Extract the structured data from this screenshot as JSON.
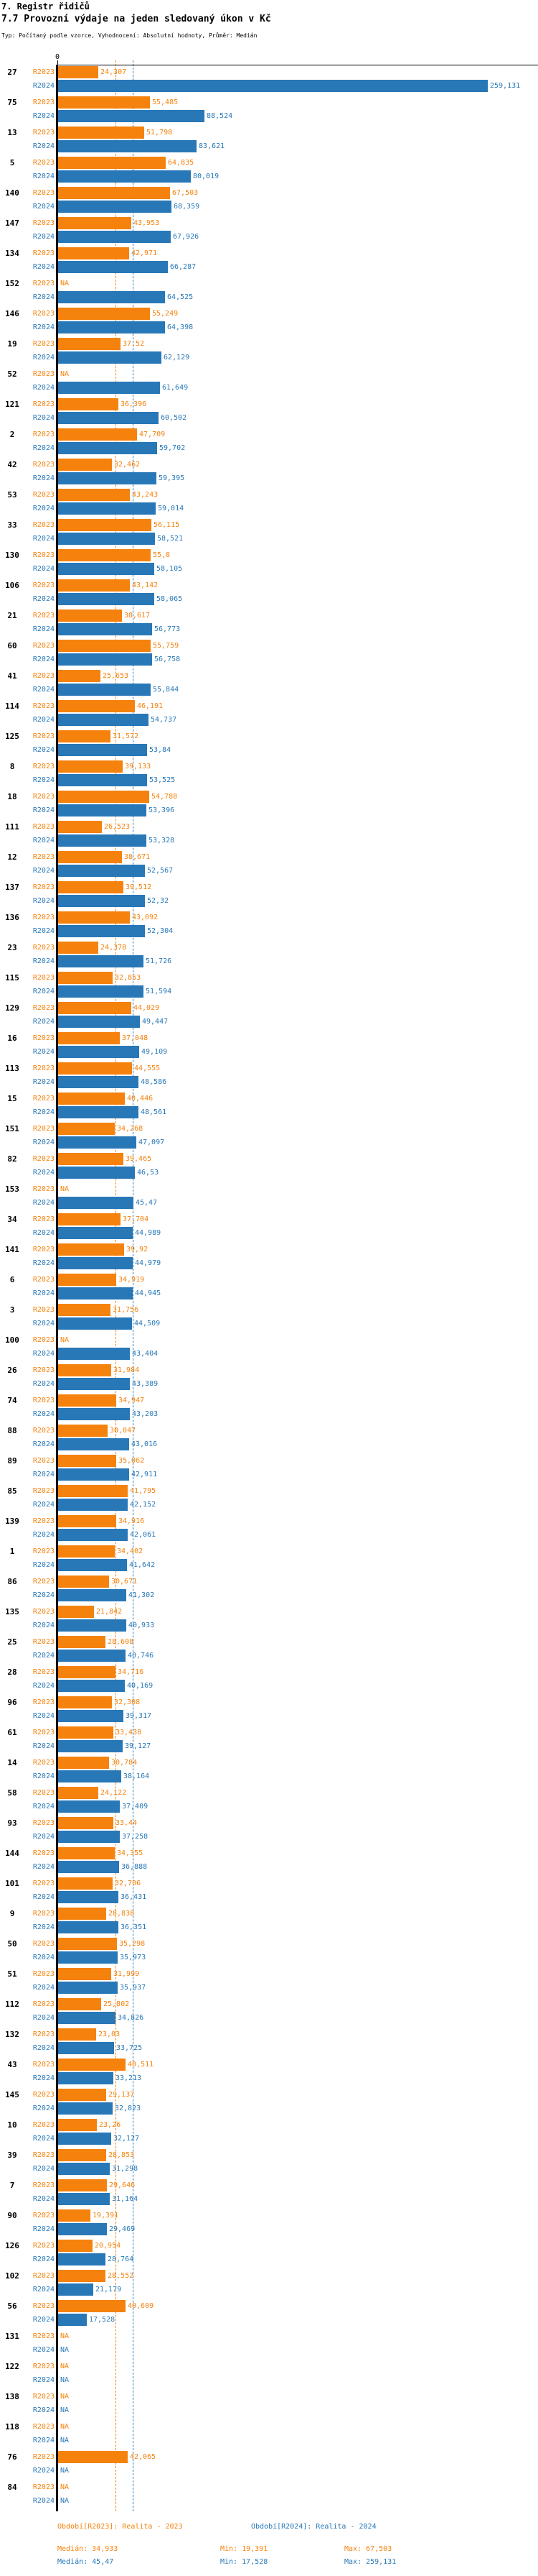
{
  "header": {
    "title": "7. Registr řidičů",
    "subtitle": "7.7 Provozní výdaje na jeden sledovaný úkon v Kč",
    "meta": "Typ: Počítaný podle vzorce, Vyhodnocení: Absolutní hodnoty, Průměr: Medián"
  },
  "chart_data": {
    "type": "bar",
    "orientation": "horizontal",
    "unit": "Kč",
    "axis_zero_label": "0",
    "na_label": "NA",
    "series_labels": [
      "R2023",
      "R2024"
    ],
    "colors": {
      "r2023": "#f5820d",
      "r2024": "#2878b8"
    },
    "median_2023": 34.933,
    "median_2024": 45.47,
    "rows": [
      {
        "id": "27",
        "v2023": "24,307",
        "v2024": "259,131"
      },
      {
        "id": "75",
        "v2023": "55,485",
        "v2024": "88,524"
      },
      {
        "id": "13",
        "v2023": "51,798",
        "v2024": "83,621"
      },
      {
        "id": "5",
        "v2023": "64,835",
        "v2024": "80,019"
      },
      {
        "id": "140",
        "v2023": "67,503",
        "v2024": "68,359"
      },
      {
        "id": "147",
        "v2023": "43,953",
        "v2024": "67,926"
      },
      {
        "id": "134",
        "v2023": "42,971",
        "v2024": "66,287"
      },
      {
        "id": "152",
        "v2023": "NA",
        "v2024": "64,525"
      },
      {
        "id": "146",
        "v2023": "55,249",
        "v2024": "64,398"
      },
      {
        "id": "19",
        "v2023": "37,52",
        "v2024": "62,129"
      },
      {
        "id": "52",
        "v2023": "NA",
        "v2024": "61,649"
      },
      {
        "id": "121",
        "v2023": "36,396",
        "v2024": "60,502"
      },
      {
        "id": "2",
        "v2023": "47,709",
        "v2024": "59,702"
      },
      {
        "id": "42",
        "v2023": "32,462",
        "v2024": "59,395"
      },
      {
        "id": "53",
        "v2023": "43,243",
        "v2024": "59,014"
      },
      {
        "id": "33",
        "v2023": "56,115",
        "v2024": "58,521"
      },
      {
        "id": "130",
        "v2023": "55,8",
        "v2024": "58,105"
      },
      {
        "id": "106",
        "v2023": "43,142",
        "v2024": "58,065"
      },
      {
        "id": "21",
        "v2023": "38,617",
        "v2024": "56,773"
      },
      {
        "id": "60",
        "v2023": "55,759",
        "v2024": "56,758"
      },
      {
        "id": "41",
        "v2023": "25,653",
        "v2024": "55,844"
      },
      {
        "id": "114",
        "v2023": "46,191",
        "v2024": "54,737"
      },
      {
        "id": "125",
        "v2023": "31,572",
        "v2024": "53,84"
      },
      {
        "id": "8",
        "v2023": "39,133",
        "v2024": "53,525"
      },
      {
        "id": "18",
        "v2023": "54,788",
        "v2024": "53,396"
      },
      {
        "id": "111",
        "v2023": "26,523",
        "v2024": "53,328"
      },
      {
        "id": "12",
        "v2023": "38,671",
        "v2024": "52,567"
      },
      {
        "id": "137",
        "v2023": "39,512",
        "v2024": "52,32"
      },
      {
        "id": "136",
        "v2023": "43,092",
        "v2024": "52,304"
      },
      {
        "id": "23",
        "v2023": "24,378",
        "v2024": "51,726"
      },
      {
        "id": "115",
        "v2023": "32,853",
        "v2024": "51,594"
      },
      {
        "id": "129",
        "v2023": "44,029",
        "v2024": "49,447"
      },
      {
        "id": "16",
        "v2023": "37,048",
        "v2024": "49,109"
      },
      {
        "id": "113",
        "v2023": "44,555",
        "v2024": "48,586"
      },
      {
        "id": "15",
        "v2023": "40,446",
        "v2024": "48,561"
      },
      {
        "id": "151",
        "v2023": "34,268",
        "v2024": "47,097"
      },
      {
        "id": "82",
        "v2023": "39,465",
        "v2024": "46,53"
      },
      {
        "id": "153",
        "v2023": "NA",
        "v2024": "45,47"
      },
      {
        "id": "34",
        "v2023": "37,704",
        "v2024": "44,989"
      },
      {
        "id": "141",
        "v2023": "39,92",
        "v2024": "44,979"
      },
      {
        "id": "6",
        "v2023": "34,919",
        "v2024": "44,945"
      },
      {
        "id": "3",
        "v2023": "31,756",
        "v2024": "44,509"
      },
      {
        "id": "100",
        "v2023": "NA",
        "v2024": "43,404"
      },
      {
        "id": "26",
        "v2023": "31,984",
        "v2024": "43,389"
      },
      {
        "id": "74",
        "v2023": "34,947",
        "v2024": "43,203"
      },
      {
        "id": "88",
        "v2023": "30,047",
        "v2024": "43,016"
      },
      {
        "id": "89",
        "v2023": "35,062",
        "v2024": "42,911"
      },
      {
        "id": "85",
        "v2023": "41,795",
        "v2024": "42,152"
      },
      {
        "id": "139",
        "v2023": "34,916",
        "v2024": "42,061"
      },
      {
        "id": "1",
        "v2023": "34,402",
        "v2024": "41,642"
      },
      {
        "id": "86",
        "v2023": "30,671",
        "v2024": "41,302"
      },
      {
        "id": "135",
        "v2023": "21,842",
        "v2024": "40,933"
      },
      {
        "id": "25",
        "v2023": "28,608",
        "v2024": "40,746"
      },
      {
        "id": "28",
        "v2023": "34,716",
        "v2024": "40,169"
      },
      {
        "id": "96",
        "v2023": "32,308",
        "v2024": "39,317"
      },
      {
        "id": "61",
        "v2023": "33,438",
        "v2024": "39,127"
      },
      {
        "id": "14",
        "v2023": "30,784",
        "v2024": "38,164"
      },
      {
        "id": "58",
        "v2023": "24,122",
        "v2024": "37,409"
      },
      {
        "id": "93",
        "v2023": "33,44",
        "v2024": "37,258"
      },
      {
        "id": "144",
        "v2023": "34,355",
        "v2024": "36,888"
      },
      {
        "id": "101",
        "v2023": "32,706",
        "v2024": "36,431"
      },
      {
        "id": "9",
        "v2023": "28,838",
        "v2024": "36,351"
      },
      {
        "id": "50",
        "v2023": "35,298",
        "v2024": "35,973"
      },
      {
        "id": "51",
        "v2023": "31,999",
        "v2024": "35,937"
      },
      {
        "id": "112",
        "v2023": "25,802",
        "v2024": "34,826"
      },
      {
        "id": "132",
        "v2023": "23,03",
        "v2024": "33,725"
      },
      {
        "id": "43",
        "v2023": "40,511",
        "v2024": "33,213"
      },
      {
        "id": "145",
        "v2023": "29,137",
        "v2024": "32,823"
      },
      {
        "id": "10",
        "v2023": "23,26",
        "v2024": "32,127"
      },
      {
        "id": "39",
        "v2023": "28,853",
        "v2024": "31,298"
      },
      {
        "id": "7",
        "v2023": "29,646",
        "v2024": "31,164"
      },
      {
        "id": "90",
        "v2023": "19,391",
        "v2024": "29,469"
      },
      {
        "id": "126",
        "v2023": "20,954",
        "v2024": "28,764"
      },
      {
        "id": "102",
        "v2023": "28,552",
        "v2024": "21,179"
      },
      {
        "id": "56",
        "v2023": "40,609",
        "v2024": "17,528"
      },
      {
        "id": "131",
        "v2023": "NA",
        "v2024": "NA"
      },
      {
        "id": "122",
        "v2023": "NA",
        "v2024": "NA"
      },
      {
        "id": "138",
        "v2023": "NA",
        "v2024": "NA"
      },
      {
        "id": "118",
        "v2023": "NA",
        "v2024": "NA"
      },
      {
        "id": "76",
        "v2023": "42,065",
        "v2024": "NA"
      },
      {
        "id": "84",
        "v2023": "NA",
        "v2024": "NA"
      }
    ]
  },
  "legend": {
    "r2023": {
      "period": "Období[R2023]: Realita - 2023",
      "median": "Medián: 34,933",
      "min": "Min: 19,391",
      "max": "Max: 67,503"
    },
    "r2024": {
      "period": "Období[R2024]: Realita - 2024",
      "median": "Medián: 45,47",
      "min": "Min: 17,528",
      "max": "Max: 259,131"
    }
  }
}
